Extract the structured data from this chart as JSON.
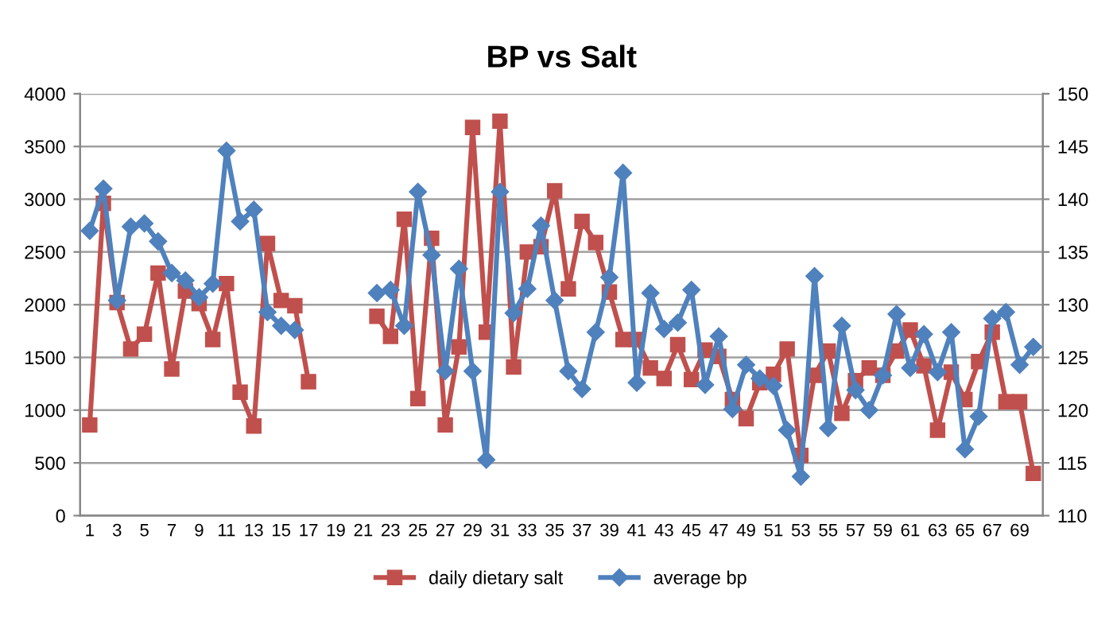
{
  "chart_data": {
    "type": "line",
    "title": "BP vs Salt",
    "categories": [
      "1",
      null,
      "3",
      null,
      "5",
      null,
      "7",
      null,
      "9",
      null,
      "11",
      null,
      "13",
      null,
      "15",
      null,
      "17",
      null,
      "19",
      null,
      "21",
      null,
      "23",
      null,
      "25",
      null,
      "27",
      null,
      "29",
      null,
      "31",
      null,
      "33",
      null,
      "35",
      null,
      "37",
      null,
      "39",
      null,
      "41",
      null,
      "43",
      null,
      "45",
      null,
      "47",
      null,
      "49",
      null,
      "51",
      null,
      "53",
      null,
      "55",
      null,
      "57",
      null,
      "59",
      null,
      "61",
      null,
      "63",
      null,
      "65",
      null,
      "67",
      null,
      "69",
      null
    ],
    "series": [
      {
        "name": "daily dietary salt",
        "color": "#c0504d",
        "marker": "square",
        "values": [
          860,
          2960,
          2020,
          1580,
          1720,
          2300,
          1390,
          2130,
          2010,
          1670,
          2200,
          1170,
          850,
          2580,
          2040,
          1990,
          1270,
          null,
          null,
          null,
          null,
          1890,
          1700,
          2810,
          1110,
          2630,
          860,
          1600,
          3680,
          1740,
          3740,
          1410,
          2500,
          2550,
          3080,
          2150,
          2790,
          2590,
          2120,
          1670,
          1670,
          1400,
          1300,
          1620,
          1290,
          1570,
          1510,
          1100,
          920,
          1260,
          1340,
          1580,
          570,
          1330,
          1560,
          970,
          1280,
          1400,
          1330,
          1560,
          1760,
          1420,
          810,
          1360,
          1100,
          1460,
          1740,
          1080,
          1080,
          400
        ]
      },
      {
        "name": "average bp",
        "color": "#4f81bd",
        "marker": "diamond",
        "axis": "y2",
        "values": [
          137.0,
          141.0,
          130.4,
          137.4,
          137.7,
          136.0,
          133.0,
          132.3,
          130.7,
          132.0,
          144.6,
          137.9,
          139.0,
          129.3,
          128.0,
          127.6,
          null,
          null,
          null,
          null,
          null,
          131.1,
          131.4,
          128.0,
          140.7,
          134.7,
          123.7,
          133.4,
          123.7,
          115.3,
          140.7,
          129.2,
          131.5,
          137.5,
          130.4,
          123.7,
          122.0,
          127.4,
          132.6,
          142.5,
          122.6,
          131.1,
          127.7,
          128.3,
          131.4,
          122.4,
          127.0,
          120.1,
          124.3,
          123.0,
          122.3,
          118.1,
          113.7,
          132.7,
          118.3,
          128.0,
          121.9,
          120.0,
          123.3,
          129.1,
          124.0,
          127.2,
          123.6,
          127.4,
          116.3,
          119.4,
          128.7,
          129.3,
          124.3,
          126.0
        ]
      }
    ],
    "ylim": [
      0,
      4000
    ],
    "yticks": [
      0,
      500,
      1000,
      1500,
      2000,
      2500,
      3000,
      3500,
      4000
    ],
    "y2lim": [
      110,
      150
    ],
    "y2ticks": [
      110,
      115,
      120,
      125,
      130,
      135,
      140,
      145,
      150
    ],
    "grid": "y",
    "legend": "bottom",
    "line_style": "solid"
  }
}
